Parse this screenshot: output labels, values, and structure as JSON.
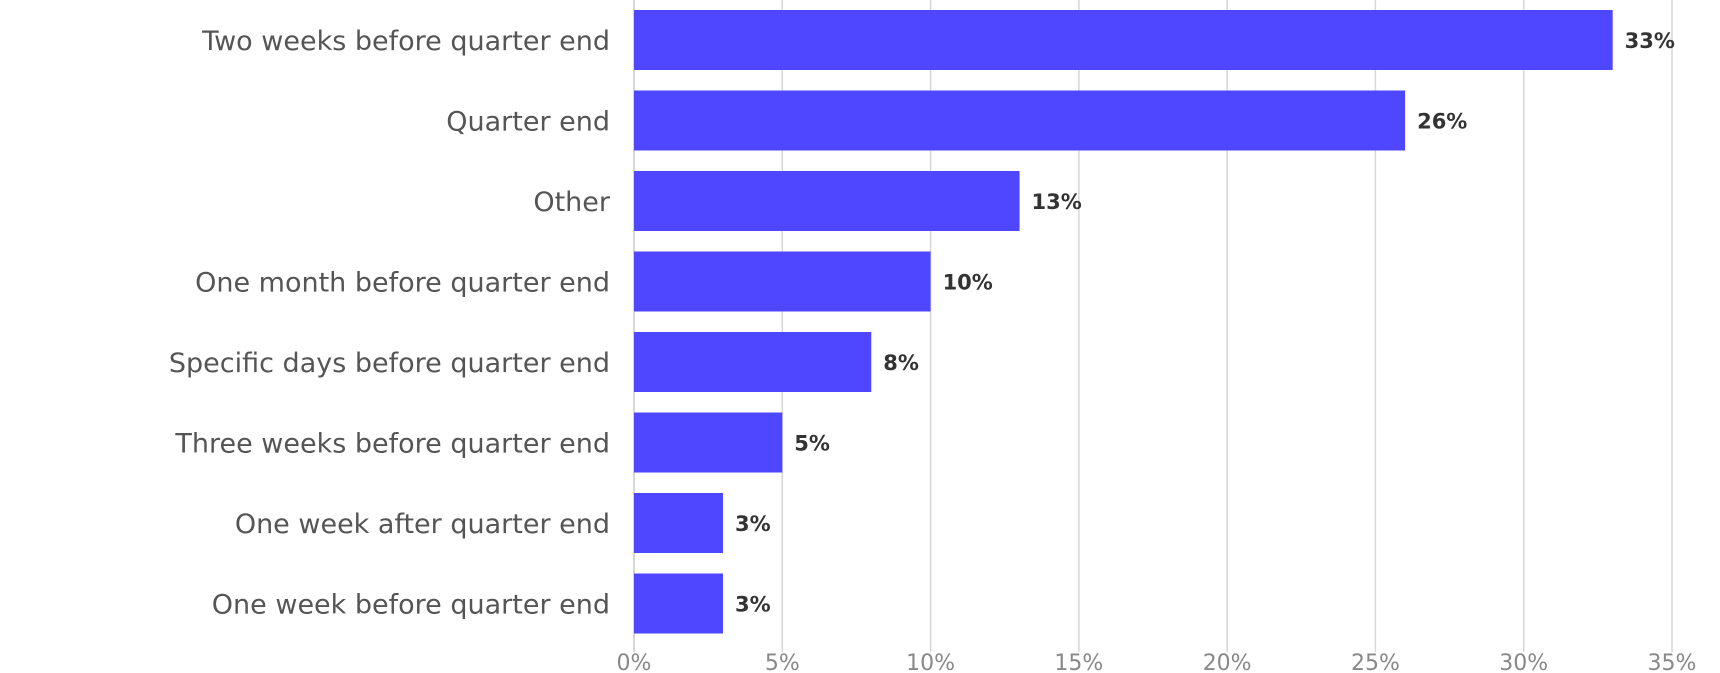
{
  "chart_data": {
    "type": "bar",
    "orientation": "horizontal",
    "categories": [
      "Two weeks before quarter end",
      "Quarter end",
      "Other",
      "One month before quarter end",
      "Specific days before quarter end",
      "Three weeks before quarter end",
      "One week after quarter end",
      "One week before quarter end"
    ],
    "values": [
      33,
      26,
      13,
      10,
      8,
      5,
      3,
      3
    ],
    "value_labels": [
      "33%",
      "26%",
      "13%",
      "10%",
      "8%",
      "5%",
      "3%",
      "3%"
    ],
    "xlim": [
      0,
      35
    ],
    "xticks": [
      0,
      5,
      10,
      15,
      20,
      25,
      30,
      35
    ],
    "xtick_labels": [
      "0%",
      "5%",
      "10%",
      "15%",
      "20%",
      "25%",
      "30%",
      "35%"
    ],
    "title": "",
    "xlabel": "",
    "ylabel": "",
    "grid": "vertical",
    "legend": "none",
    "colors": {
      "bar": "#4f46ff"
    }
  }
}
